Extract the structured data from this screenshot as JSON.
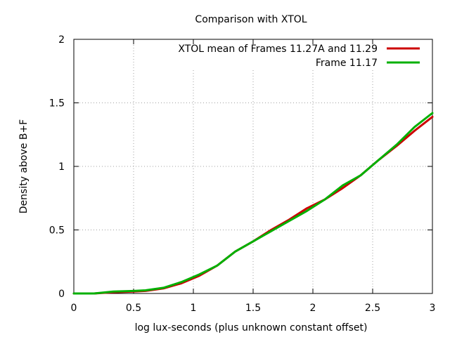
{
  "chart_data": {
    "type": "line",
    "title": "Comparison with XTOL",
    "xlabel": "log lux-seconds (plus unknown constant offset)",
    "ylabel": "Density above B+F",
    "xlim": [
      0,
      3
    ],
    "ylim": [
      0,
      2
    ],
    "xticks": [
      0,
      0.5,
      1,
      1.5,
      2,
      2.5,
      3
    ],
    "xtick_labels": [
      "0",
      "0.5",
      "1",
      "1.5",
      "2",
      "2.5",
      "3"
    ],
    "yticks": [
      0,
      0.5,
      1,
      1.5,
      2
    ],
    "ytick_labels": [
      "0",
      "0.5",
      "1",
      "1.5",
      "2"
    ],
    "grid": true,
    "legend_position": "top-right",
    "series": [
      {
        "name": "XTOL mean of Frames 11.27A and 11.29",
        "color": "#cc0000",
        "x": [
          0,
          0.17,
          0.33,
          0.5,
          0.6,
          0.75,
          0.9,
          1.05,
          1.2,
          1.35,
          1.5,
          1.65,
          1.8,
          1.95,
          2.1,
          2.25,
          2.4,
          2.55,
          2.7,
          2.85,
          3.0
        ],
        "y": [
          0,
          0.0,
          0.01,
          0.015,
          0.02,
          0.04,
          0.08,
          0.14,
          0.22,
          0.33,
          0.41,
          0.5,
          0.58,
          0.67,
          0.74,
          0.83,
          0.93,
          1.05,
          1.16,
          1.28,
          1.39
        ]
      },
      {
        "name": "Frame 11.17",
        "color": "#00b000",
        "x": [
          0,
          0.17,
          0.33,
          0.5,
          0.6,
          0.75,
          0.9,
          1.05,
          1.2,
          1.35,
          1.5,
          1.65,
          1.8,
          1.95,
          2.1,
          2.25,
          2.4,
          2.55,
          2.7,
          2.85,
          3.0
        ],
        "y": [
          0,
          0.0,
          0.015,
          0.02,
          0.025,
          0.045,
          0.09,
          0.15,
          0.22,
          0.33,
          0.41,
          0.49,
          0.57,
          0.65,
          0.74,
          0.85,
          0.93,
          1.05,
          1.17,
          1.31,
          1.42
        ]
      }
    ]
  }
}
